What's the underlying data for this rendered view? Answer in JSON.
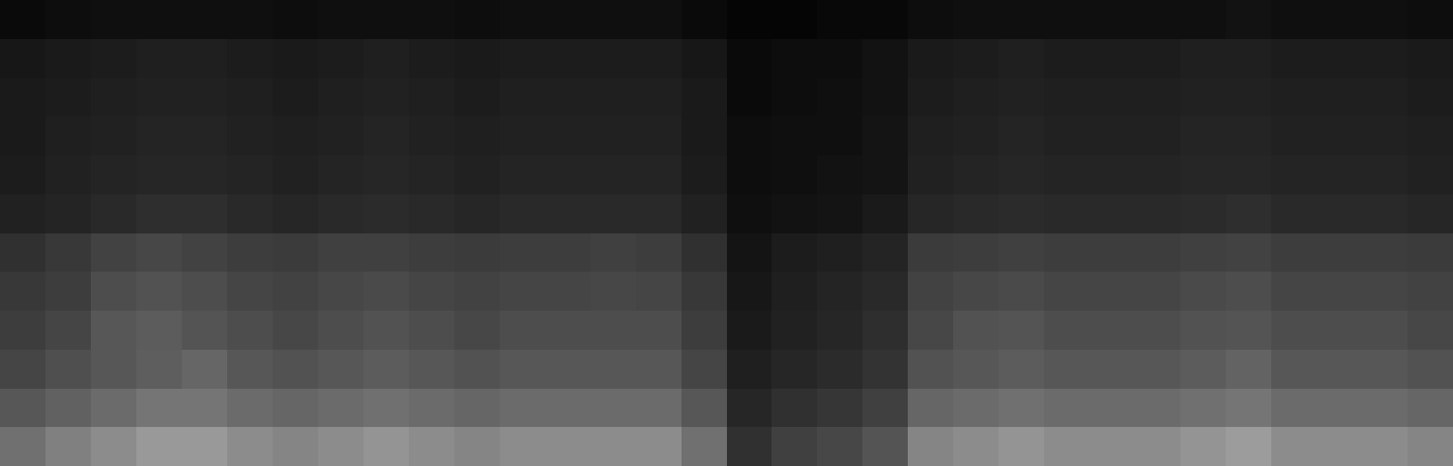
{
  "chart_data": {
    "type": "heatmap",
    "tick_labels": false,
    "zlim": [
      0,
      100
    ],
    "z": [
      [
        44,
        50,
        55,
        60,
        60,
        55,
        52,
        55,
        58,
        55,
        52,
        55,
        55,
        55,
        55,
        44,
        19,
        25,
        28,
        33,
        52,
        55,
        58,
        55,
        55,
        55,
        58,
        61,
        55,
        55,
        55,
        52
      ],
      [
        34,
        38,
        42,
        46,
        46,
        42,
        40,
        42,
        44,
        42,
        40,
        42,
        42,
        42,
        42,
        34,
        15,
        19,
        21,
        25,
        40,
        42,
        44,
        42,
        42,
        42,
        44,
        46,
        42,
        42,
        42,
        40
      ],
      [
        27,
        31,
        34,
        37,
        40,
        34,
        32,
        34,
        36,
        34,
        32,
        34,
        34,
        34,
        34,
        27,
        12,
        15,
        17,
        20,
        32,
        34,
        36,
        34,
        34,
        34,
        36,
        39,
        34,
        34,
        34,
        32
      ],
      [
        24,
        27,
        34,
        36,
        33,
        30,
        28,
        30,
        32,
        30,
        28,
        30,
        30,
        30,
        30,
        24,
        10,
        13,
        15,
        18,
        28,
        32,
        33,
        30,
        30,
        30,
        32,
        33,
        30,
        30,
        30,
        28
      ],
      [
        22,
        24,
        30,
        32,
        30,
        27,
        26,
        28,
        29,
        27,
        26,
        27,
        27,
        28,
        27,
        22,
        9,
        12,
        14,
        16,
        26,
        28,
        29,
        27,
        27,
        27,
        29,
        30,
        27,
        27,
        27,
        26
      ],
      [
        19,
        22,
        26,
        28,
        26,
        24,
        23,
        25,
        25,
        24,
        23,
        24,
        24,
        25,
        24,
        19,
        8,
        11,
        12,
        14,
        23,
        24,
        25,
        24,
        24,
        24,
        25,
        26,
        24,
        24,
        24,
        23
      ],
      [
        13,
        14,
        16,
        18,
        18,
        16,
        15,
        16,
        17,
        16,
        15,
        16,
        16,
        16,
        16,
        13,
        6,
        7,
        8,
        10,
        15,
        16,
        17,
        16,
        16,
        16,
        17,
        18,
        16,
        16,
        16,
        15
      ],
      [
        11,
        13,
        14,
        15,
        15,
        14,
        13,
        14,
        15,
        14,
        13,
        14,
        14,
        14,
        14,
        11,
        5,
        6,
        7,
        8,
        13,
        14,
        15,
        14,
        14,
        14,
        15,
        15,
        14,
        14,
        14,
        13
      ],
      [
        10,
        12,
        13,
        14,
        14,
        13,
        12,
        13,
        14,
        13,
        12,
        13,
        13,
        13,
        13,
        10,
        5,
        6,
        6,
        8,
        12,
        13,
        14,
        13,
        13,
        13,
        14,
        14,
        13,
        13,
        13,
        12
      ],
      [
        10,
        11,
        12,
        13,
        13,
        12,
        11,
        12,
        13,
        12,
        11,
        12,
        12,
        12,
        12,
        10,
        4,
        5,
        6,
        7,
        11,
        12,
        13,
        12,
        12,
        12,
        13,
        13,
        12,
        12,
        12,
        11
      ],
      [
        9,
        10,
        11,
        12,
        12,
        11,
        10,
        11,
        12,
        11,
        10,
        11,
        11,
        11,
        11,
        9,
        4,
        5,
        5,
        7,
        10,
        11,
        12,
        11,
        11,
        11,
        12,
        12,
        11,
        11,
        11,
        10
      ],
      [
        4,
        5,
        6,
        6,
        6,
        6,
        5,
        6,
        6,
        6,
        5,
        6,
        6,
        6,
        6,
        4,
        2,
        2,
        3,
        3,
        5,
        6,
        6,
        6,
        6,
        6,
        6,
        7,
        6,
        6,
        6,
        5
      ]
    ]
  }
}
